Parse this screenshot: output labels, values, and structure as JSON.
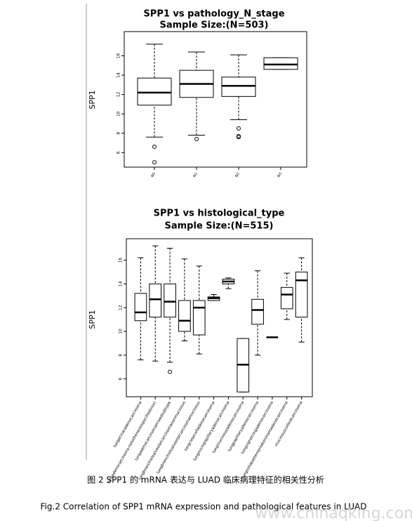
{
  "chart_data": [
    {
      "type": "box",
      "title": "SPP1 vs pathology_N_stage",
      "subtitle": "Sample Size:(N=503)",
      "y_label": "SPP1",
      "categories": [
        "N0",
        "N1",
        "N2",
        "N3"
      ],
      "boxes": [
        {
          "low": 7.6,
          "q1": 10.9,
          "median": 12.2,
          "q3": 13.7,
          "high": 17.2,
          "outliers": [
            6.6,
            5.0
          ]
        },
        {
          "low": 7.8,
          "q1": 11.7,
          "median": 13.1,
          "q3": 14.5,
          "high": 16.4,
          "outliers": [
            7.4
          ]
        },
        {
          "low": 9.4,
          "q1": 11.8,
          "median": 12.9,
          "q3": 13.8,
          "high": 16.1,
          "outliers": [
            8.5,
            7.7,
            7.6
          ]
        },
        {
          "low": 14.6,
          "q1": 14.6,
          "median": 15.1,
          "q3": 15.8,
          "high": 15.8,
          "outliers": []
        }
      ],
      "ylim": [
        4.5,
        18.5
      ],
      "yticks": [
        6,
        8,
        10,
        12,
        14,
        16
      ]
    },
    {
      "type": "box",
      "title": "SPP1 vs histological_type",
      "subtitle": "Sample Size:(N=515)",
      "y_label": "SPP1",
      "categories": [
        "lungacinaradenocarcinoma",
        "lungadenocarcinoma-nototherwisespecified(nos)",
        "lungadenocarcinomamixedsubtype",
        "lungbronchioloalveolarcarcinomanonmucinous",
        "lungbronchioloalveolarcarcinomamucinous",
        "lungclearcelladenocarcinoma",
        "lungmicropapillaryadenocarcinoma",
        "lungmucinousadenocarcinoma",
        "lungpapillaryadenocarcinoma",
        "lungsignetringadenocarcinoma",
        "lungsolidpatternpredominantadenocarcinoma",
        "mucinouscolloidcarcinoma"
      ],
      "boxes": [
        {
          "low": 7.6,
          "q1": 10.9,
          "median": 11.6,
          "q3": 13.2,
          "high": 16.2,
          "outliers": []
        },
        {
          "low": 7.5,
          "q1": 11.2,
          "median": 12.7,
          "q3": 14.0,
          "high": 17.2,
          "outliers": []
        },
        {
          "low": 7.4,
          "q1": 11.2,
          "median": 12.5,
          "q3": 14.0,
          "high": 17.0,
          "outliers": [
            6.6
          ]
        },
        {
          "low": 9.2,
          "q1": 10.0,
          "median": 10.9,
          "q3": 12.6,
          "high": 16.1,
          "outliers": []
        },
        {
          "low": 8.1,
          "q1": 9.7,
          "median": 12.0,
          "q3": 12.6,
          "high": 15.5,
          "outliers": []
        },
        {
          "low": 12.6,
          "q1": 12.6,
          "median": 12.8,
          "q3": 12.9,
          "high": 13.1,
          "outliers": []
        },
        {
          "low": 13.6,
          "q1": 14.0,
          "median": 14.2,
          "q3": 14.4,
          "high": 14.5,
          "outliers": []
        },
        {
          "low": 4.9,
          "q1": 4.9,
          "median": 7.2,
          "q3": 9.4,
          "high": 9.4,
          "outliers": []
        },
        {
          "low": 8.0,
          "q1": 10.6,
          "median": 11.8,
          "q3": 12.7,
          "high": 15.1,
          "outliers": []
        },
        {
          "low": 9.5,
          "q1": 9.5,
          "median": 9.5,
          "q3": 9.5,
          "high": 9.5,
          "outliers": []
        },
        {
          "low": 11.0,
          "q1": 11.9,
          "median": 13.1,
          "q3": 13.7,
          "high": 14.9,
          "outliers": []
        },
        {
          "low": 9.1,
          "q1": 11.2,
          "median": 14.3,
          "q3": 15.0,
          "high": 16.2,
          "outliers": []
        }
      ],
      "ylim": [
        4.5,
        17.8
      ],
      "yticks": [
        6,
        8,
        10,
        12,
        14,
        16
      ]
    }
  ],
  "caption": {
    "cn": "图 2 SPP1 的 mRNA 表达与 LUAD 临床病理特征的相关性分析",
    "en": "Fig.2 Correlation of SPP1 mRNA expression and pathological features in LUAD"
  },
  "watermark": "www.chinaqking.com"
}
